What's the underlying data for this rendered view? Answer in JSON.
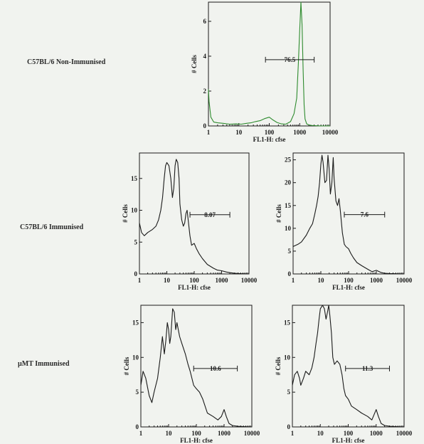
{
  "row_labels": {
    "r0": "C57BL/6 Non-Immunised",
    "r1": "C57BL/6 Immunised",
    "r2": "µMT Immunised"
  },
  "chart_data": [
    {
      "type": "line",
      "row": "C57BL/6 Non-Immunised",
      "xlabel": "FL1-H: cfse",
      "ylabel": "# Cells",
      "xscale": "log",
      "xlim": [
        1,
        10000
      ],
      "ylim": [
        0,
        7.1
      ],
      "xticks": [
        "1",
        "10",
        "100",
        "1000",
        "10000"
      ],
      "yticks": [
        0,
        2,
        4,
        6
      ],
      "line_color": "#2e8b2e",
      "gate": {
        "label": "76.5",
        "from": 75,
        "to": 3000,
        "level": 3.8
      },
      "x": [
        1,
        1.05,
        1.2,
        1.5,
        2,
        3,
        5,
        8,
        12,
        18,
        25,
        35,
        50,
        70,
        100,
        130,
        180,
        250,
        350,
        500,
        650,
        800,
        900,
        1000,
        1100,
        1200,
        1300,
        1400,
        1500,
        1700,
        2000,
        2500,
        3000,
        4000,
        6000,
        10000
      ],
      "y": [
        2.1,
        1.4,
        0.5,
        0.22,
        0.18,
        0.15,
        0.1,
        0.12,
        0.1,
        0.15,
        0.18,
        0.25,
        0.3,
        0.42,
        0.5,
        0.35,
        0.2,
        0.12,
        0.1,
        0.25,
        0.7,
        1.6,
        3.5,
        5.5,
        7.1,
        5.8,
        3.2,
        1.2,
        0.4,
        0.12,
        0.06,
        0.03,
        0.02,
        0.01,
        0.0,
        0.0
      ]
    },
    {
      "type": "line",
      "row": "C57BL/6 Immunised",
      "xlabel": "FL1-H: cfse",
      "ylabel": "# Cells",
      "xscale": "log",
      "xlim": [
        1,
        10000
      ],
      "ylim": [
        0,
        19
      ],
      "xticks": [
        "1",
        "10",
        "100",
        "1000",
        "10000"
      ],
      "yticks": [
        0,
        5,
        10,
        15
      ],
      "line_color": "#1a1a1a",
      "gate": {
        "label": "8.07",
        "from": 70,
        "to": 2000,
        "level": 9.3
      },
      "x": [
        1,
        1.2,
        1.5,
        2,
        3,
        4,
        5,
        6,
        7,
        8,
        9,
        10,
        12,
        14,
        16,
        18,
        20,
        22,
        25,
        28,
        30,
        35,
        40,
        45,
        50,
        55,
        60,
        70,
        80,
        100,
        120,
        150,
        200,
        300,
        500,
        700,
        1000,
        1500,
        2000,
        3000,
        5000,
        10000
      ],
      "y": [
        8.0,
        6.5,
        6.0,
        6.5,
        7.0,
        7.5,
        8.5,
        10.0,
        12.0,
        15.0,
        17.0,
        17.5,
        17.0,
        15.0,
        12.0,
        13.5,
        17.0,
        18.0,
        17.5,
        15.0,
        11.0,
        8.5,
        7.5,
        8.0,
        9.5,
        10.0,
        8.5,
        6.0,
        4.5,
        4.8,
        4.0,
        3.2,
        2.4,
        1.5,
        0.9,
        0.6,
        0.5,
        0.3,
        0.2,
        0.1,
        0.05,
        0.0
      ]
    },
    {
      "type": "line",
      "row": "C57BL/6 Immunised",
      "xlabel": "FL1-H: cfse",
      "ylabel": "# Cells",
      "xscale": "log",
      "xlim": [
        1,
        10000
      ],
      "ylim": [
        0,
        26.5
      ],
      "xticks": [
        "1",
        "10",
        "100",
        "1000",
        "10000"
      ],
      "yticks": [
        0,
        5,
        10,
        15,
        20,
        25
      ],
      "line_color": "#1a1a1a",
      "gate": {
        "label": "7.6",
        "from": 70,
        "to": 2000,
        "level": 13
      },
      "x": [
        1,
        1.5,
        2,
        3,
        4,
        5,
        6,
        7,
        8,
        9,
        10,
        11,
        12,
        14,
        16,
        18,
        20,
        22,
        25,
        28,
        30,
        35,
        40,
        45,
        50,
        60,
        70,
        80,
        100,
        120,
        150,
        200,
        300,
        500,
        700,
        1000,
        1500,
        2000,
        3000,
        5000,
        10000
      ],
      "y": [
        6.0,
        6.5,
        7.0,
        8.5,
        10.0,
        11.0,
        13.0,
        15.0,
        17.0,
        20.0,
        24.0,
        26.0,
        24.5,
        20.0,
        20.5,
        26.0,
        23.0,
        17.5,
        20.0,
        25.5,
        21.0,
        16.0,
        15.0,
        16.5,
        14.0,
        9.0,
        6.5,
        6.0,
        5.5,
        4.5,
        3.5,
        2.5,
        1.8,
        1.0,
        0.5,
        0.8,
        0.3,
        0.15,
        0.1,
        0.05,
        0.0
      ]
    },
    {
      "type": "line",
      "row": "µMT Immunised",
      "xlabel": "FL1-H: cfse",
      "ylabel": "# Cells",
      "xscale": "log",
      "xlim": [
        1,
        10000
      ],
      "ylim": [
        0,
        17.5
      ],
      "xticks": [
        "1",
        "10",
        "100",
        "1000",
        "10000"
      ],
      "yticks": [
        0,
        5,
        10,
        15
      ],
      "line_color": "#1a1a1a",
      "gate": {
        "label": "10.6",
        "from": 80,
        "to": 3000,
        "level": 8.4
      },
      "x": [
        1,
        1.2,
        1.5,
        2,
        2.5,
        3,
        4,
        5,
        6,
        7,
        8,
        9,
        10,
        11,
        12,
        14,
        16,
        18,
        20,
        25,
        30,
        40,
        50,
        60,
        80,
        100,
        130,
        170,
        250,
        400,
        600,
        800,
        1000,
        1200,
        1500,
        2000,
        3000,
        5000,
        10000
      ],
      "y": [
        6.0,
        8.0,
        7.0,
        4.5,
        3.5,
        5.0,
        7.0,
        10.0,
        13.0,
        10.5,
        12.5,
        15.0,
        14.0,
        12.0,
        13.0,
        17.0,
        16.5,
        14.0,
        15.0,
        13.0,
        12.0,
        10.5,
        9.0,
        8.0,
        6.0,
        5.5,
        5.0,
        4.0,
        2.0,
        1.5,
        1.0,
        1.5,
        2.5,
        1.5,
        0.5,
        0.2,
        0.1,
        0.05,
        0.0
      ]
    },
    {
      "type": "line",
      "row": "µMT Immunised",
      "xlabel": "FL1-H: cfse",
      "ylabel": "# Cells",
      "xscale": "log",
      "xlim": [
        1,
        10000
      ],
      "ylim": [
        0,
        17.5
      ],
      "xticks": [
        "1",
        "10",
        "100",
        "1000",
        "10000"
      ],
      "yticks": [
        0,
        5,
        10,
        15
      ],
      "line_color": "#1a1a1a",
      "gate": {
        "label": "11.3",
        "from": 80,
        "to": 3000,
        "level": 8.4
      },
      "x": [
        1,
        1.2,
        1.5,
        1.8,
        2,
        2.5,
        3,
        4,
        5,
        6,
        7,
        8,
        9,
        10,
        12,
        14,
        16,
        18,
        20,
        22,
        25,
        28,
        32,
        40,
        50,
        60,
        70,
        80,
        100,
        130,
        200,
        300,
        500,
        700,
        1000,
        1200,
        1500,
        2000,
        3000,
        5000,
        10000
      ],
      "y": [
        6.0,
        7.5,
        8.0,
        7.0,
        6.0,
        7.0,
        8.0,
        7.5,
        8.5,
        10.0,
        12.0,
        13.5,
        15.5,
        17.0,
        17.5,
        17.0,
        15.5,
        16.5,
        17.5,
        16.0,
        13.5,
        10.0,
        9.0,
        9.5,
        9.0,
        7.5,
        5.5,
        4.5,
        4.0,
        3.0,
        2.5,
        2.0,
        1.5,
        1.0,
        2.5,
        1.5,
        0.5,
        0.2,
        0.1,
        0.05,
        0.0
      ]
    }
  ]
}
